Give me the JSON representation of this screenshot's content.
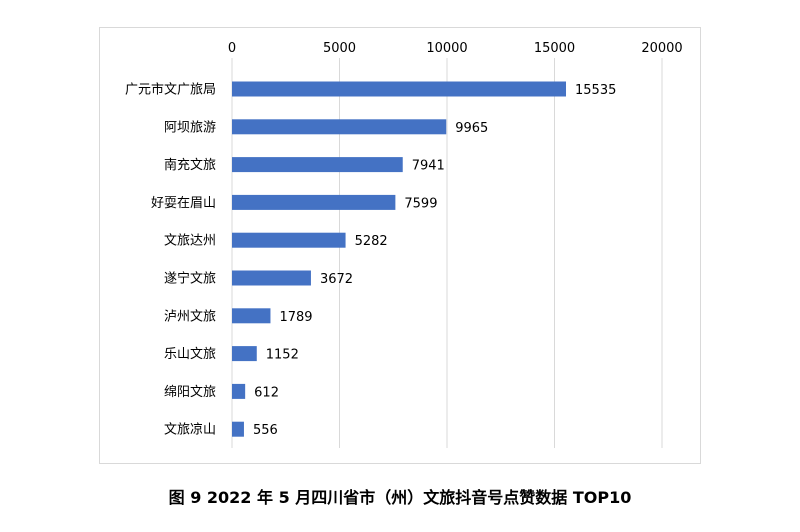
{
  "caption": "图 9 2022 年 5 月四川省市（州）文旅抖音号点赞数据 TOP10",
  "chart_data": {
    "type": "bar",
    "orientation": "horizontal",
    "x_axis_position": "top",
    "categories": [
      "广元市文广旅局",
      "阿坝旅游",
      "南充文旅",
      "好耍在眉山",
      "文旅达州",
      "遂宁文旅",
      "泸州文旅",
      "乐山文旅",
      "绵阳文旅",
      "文旅凉山"
    ],
    "values": [
      15535,
      9965,
      7941,
      7599,
      5282,
      3672,
      1789,
      1152,
      612,
      556
    ],
    "xlim": [
      0,
      20000
    ],
    "xticks": [
      0,
      5000,
      10000,
      15000,
      20000
    ],
    "grid": true,
    "legend": "none",
    "bar_color": "#4472C4",
    "grid_color": "#d9d9d9",
    "title": "",
    "xlabel": "",
    "ylabel": ""
  }
}
